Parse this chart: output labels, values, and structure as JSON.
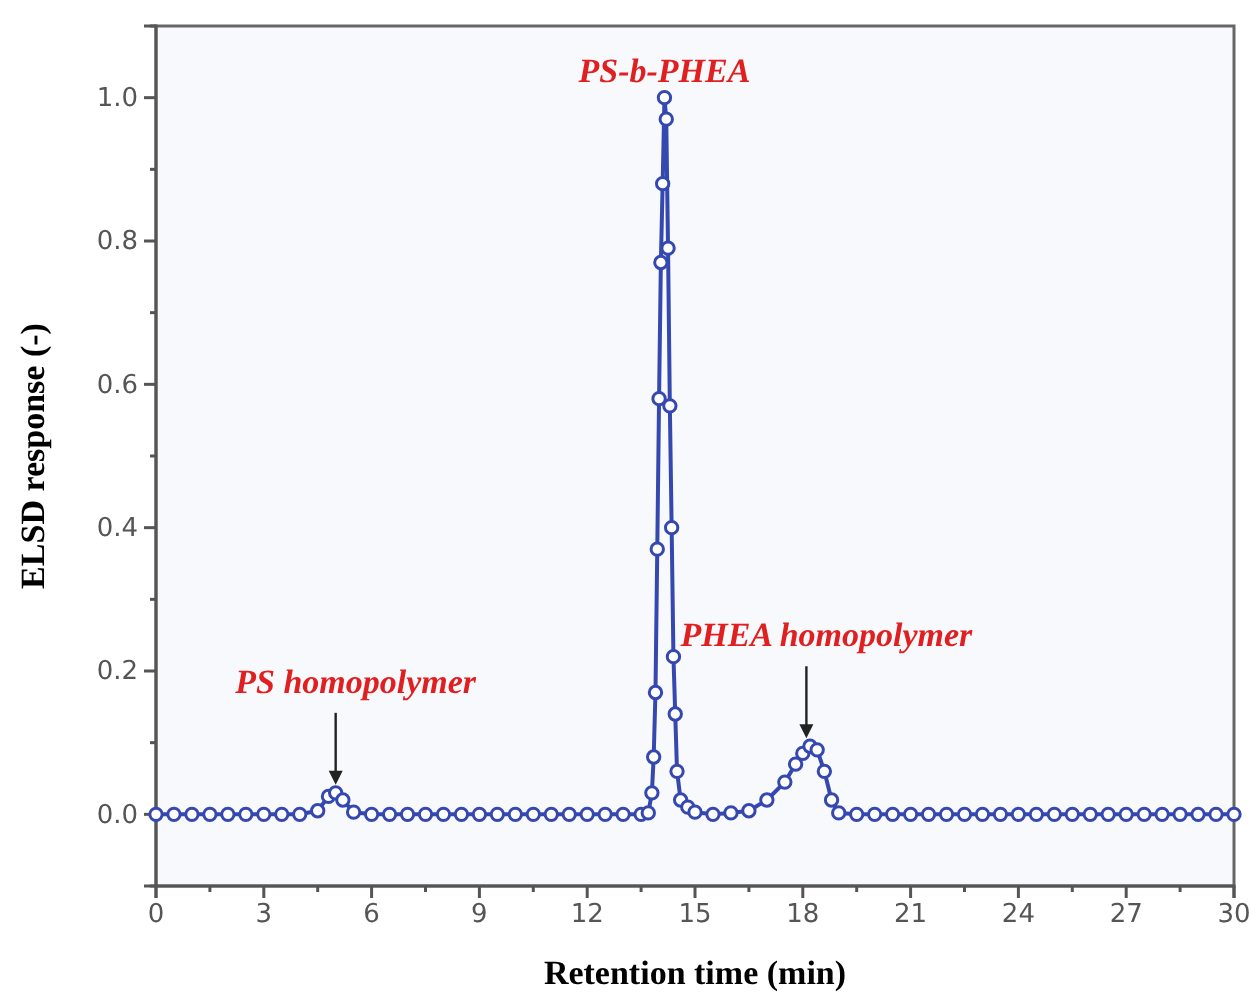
{
  "chart_data": {
    "type": "line",
    "xlabel": "Retention time (min)",
    "ylabel": "ELSD response (-)",
    "xlim": [
      0,
      30
    ],
    "xticks": [
      0,
      3,
      6,
      9,
      12,
      15,
      18,
      21,
      24,
      27,
      30
    ],
    "ylim": [
      -0.1,
      1.1
    ],
    "yticks": [
      {
        "value": 0,
        "label": "0.0"
      },
      0.2,
      0.4,
      0.6,
      0.8,
      {
        "value": 1,
        "label": "1.0"
      }
    ],
    "marker": "circle",
    "grid": false,
    "series": [
      {
        "color": "#3548b0",
        "x": [
          0,
          0.5,
          1,
          1.5,
          2,
          2.5,
          3,
          3.5,
          4,
          4.5,
          4.8,
          5,
          5.2,
          5.5,
          6,
          6.5,
          7,
          7.5,
          8,
          8.5,
          9,
          9.5,
          10,
          10.5,
          11,
          11.5,
          12,
          12.5,
          13,
          13.5,
          13.7,
          13.8,
          13.85,
          13.9,
          13.95,
          14,
          14.05,
          14.1,
          14.15,
          14.2,
          14.25,
          14.3,
          14.35,
          14.4,
          14.45,
          14.5,
          14.6,
          14.8,
          15,
          15.5,
          16,
          16.5,
          17,
          17.5,
          17.8,
          18,
          18.2,
          18.4,
          18.6,
          18.8,
          19,
          19.5,
          20,
          20.5,
          21,
          21.5,
          22,
          22.5,
          23,
          23.5,
          24,
          24.5,
          25,
          25.5,
          26,
          26.5,
          27,
          27.5,
          28,
          28.5,
          29,
          29.5,
          30
        ],
        "values": [
          0,
          0,
          0,
          0,
          0,
          0,
          0,
          0,
          0,
          0.005,
          0.025,
          0.03,
          0.02,
          0.003,
          0,
          0,
          0,
          0,
          0,
          0,
          0,
          0,
          0,
          0,
          0,
          0,
          0,
          0,
          0,
          0,
          0.002,
          0.03,
          0.08,
          0.17,
          0.37,
          0.58,
          0.77,
          0.88,
          1.0,
          0.97,
          0.79,
          0.57,
          0.4,
          0.22,
          0.14,
          0.06,
          0.02,
          0.01,
          0.003,
          0,
          0.002,
          0.005,
          0.02,
          0.045,
          0.07,
          0.085,
          0.095,
          0.09,
          0.06,
          0.02,
          0.002,
          0,
          0,
          0,
          0,
          0,
          0,
          0,
          0,
          0,
          0,
          0,
          0,
          0,
          0,
          0,
          0,
          0,
          0,
          0,
          0,
          0,
          0
        ]
      }
    ],
    "annotations": [
      {
        "text": "PS-b-PHEA",
        "x": 14.15,
        "y": 1.0
      },
      {
        "text": "PS homopolymer",
        "x": 5,
        "y": 0.03
      },
      {
        "text": "PHEA homopolymer",
        "x": 18.1,
        "y": 0.095
      }
    ]
  }
}
